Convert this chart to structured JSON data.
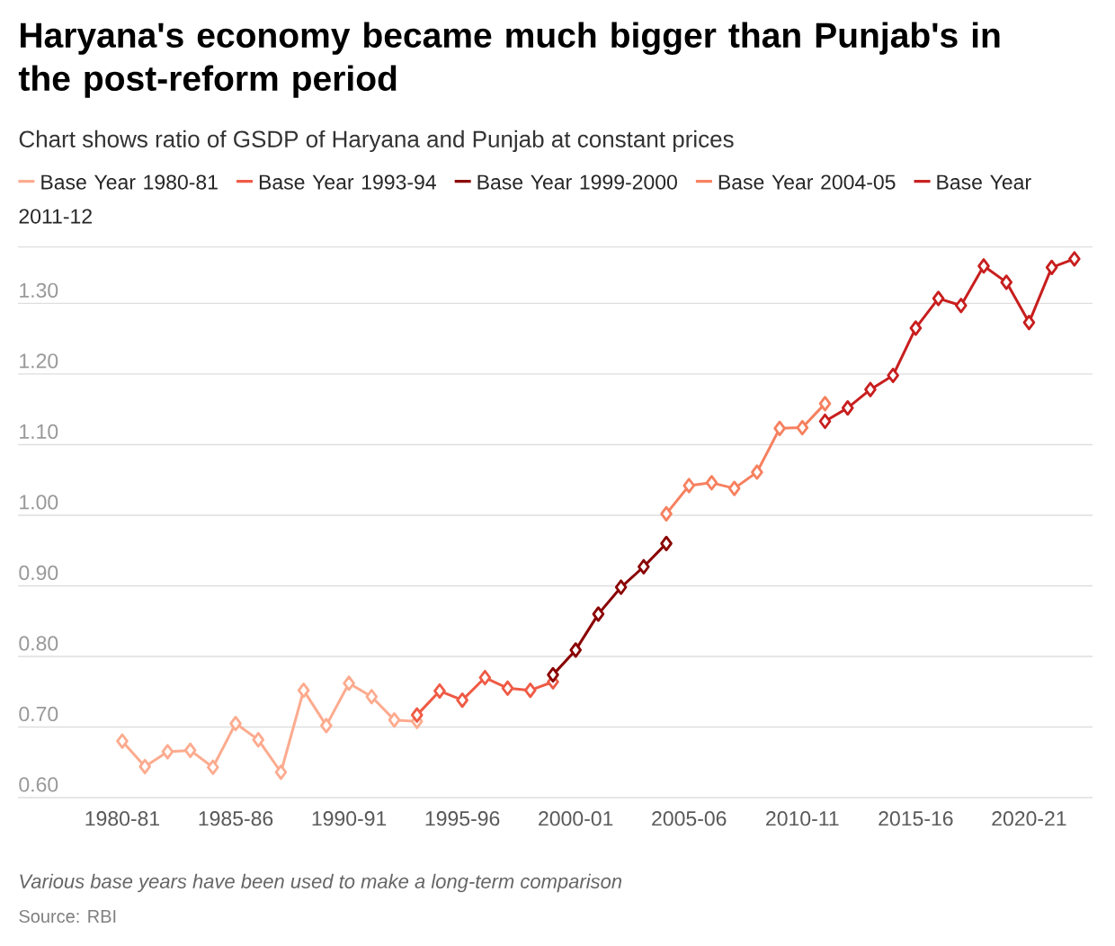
{
  "chart_data": {
    "type": "line",
    "title": "Haryana's economy became much bigger than Punjab's in the post-reform period",
    "subtitle": "Chart shows ratio of GSDP of Haryana and Punjab at constant prices",
    "categories": [
      "1980-81",
      null,
      null,
      null,
      null,
      "1985-86",
      null,
      null,
      null,
      null,
      "1990-91",
      null,
      null,
      null,
      null,
      "1995-96",
      null,
      null,
      null,
      null,
      "2000-01",
      null,
      null,
      null,
      null,
      "2005-06",
      null,
      null,
      null,
      null,
      "2010-11",
      null,
      null,
      null,
      null,
      "2015-16",
      null,
      null,
      null,
      null,
      "2020-21",
      null,
      null
    ],
    "yticks": [
      {
        "value": 0.6,
        "label": "0.60"
      },
      {
        "value": 0.7,
        "label": "0.70"
      },
      {
        "value": 0.8,
        "label": "0.80"
      },
      {
        "value": 0.9,
        "label": "0.90"
      },
      {
        "value": 1.0,
        "label": "1.00"
      },
      {
        "value": 1.1,
        "label": "1.10"
      },
      {
        "value": 1.2,
        "label": "1.20"
      },
      {
        "value": 1.3,
        "label": "1.30"
      },
      {
        "value": 1.38,
        "label": null
      }
    ],
    "ylim": [
      0.6,
      1.38
    ],
    "grid": "y",
    "legend": "top",
    "marker": "diamond",
    "series": [
      {
        "name": "Base Year 1980-81",
        "color": "#fcab8f",
        "values": [
          0.68,
          0.644,
          0.665,
          0.667,
          0.643,
          0.705,
          0.682,
          0.636,
          0.752,
          0.702,
          0.762,
          0.743,
          0.71,
          0.708,
          null,
          null,
          null,
          null,
          null,
          null,
          null,
          null,
          null,
          null,
          null,
          null,
          null,
          null,
          null,
          null,
          null,
          null,
          null,
          null,
          null,
          null,
          null,
          null,
          null,
          null,
          null,
          null,
          null
        ]
      },
      {
        "name": "Base Year 1993-94",
        "color": "#ef5a45",
        "values": [
          null,
          null,
          null,
          null,
          null,
          null,
          null,
          null,
          null,
          null,
          null,
          null,
          null,
          0.717,
          0.751,
          0.738,
          0.77,
          0.755,
          0.752,
          0.764,
          null,
          null,
          null,
          null,
          null,
          null,
          null,
          null,
          null,
          null,
          null,
          null,
          null,
          null,
          null,
          null,
          null,
          null,
          null,
          null,
          null,
          null,
          null
        ]
      },
      {
        "name": "Base Year 1999-2000",
        "color": "#8a0000",
        "values": [
          null,
          null,
          null,
          null,
          null,
          null,
          null,
          null,
          null,
          null,
          null,
          null,
          null,
          null,
          null,
          null,
          null,
          null,
          null,
          0.774,
          0.809,
          0.86,
          0.898,
          0.927,
          0.96,
          null,
          null,
          null,
          null,
          null,
          null,
          null,
          null,
          null,
          null,
          null,
          null,
          null,
          null,
          null,
          null,
          null,
          null
        ]
      },
      {
        "name": "Base Year 2004-05",
        "color": "#f6805f",
        "values": [
          null,
          null,
          null,
          null,
          null,
          null,
          null,
          null,
          null,
          null,
          null,
          null,
          null,
          null,
          null,
          null,
          null,
          null,
          null,
          null,
          null,
          null,
          null,
          null,
          1.002,
          1.042,
          1.046,
          1.038,
          1.061,
          1.123,
          1.124,
          1.158,
          null,
          null,
          null,
          null,
          null,
          null,
          null,
          null,
          null,
          null,
          null
        ]
      },
      {
        "name": "Base Year 2011-12",
        "color": "#c81e1e",
        "values": [
          null,
          null,
          null,
          null,
          null,
          null,
          null,
          null,
          null,
          null,
          null,
          null,
          null,
          null,
          null,
          null,
          null,
          null,
          null,
          null,
          null,
          null,
          null,
          null,
          null,
          null,
          null,
          null,
          null,
          null,
          null,
          1.133,
          1.152,
          1.178,
          1.198,
          1.265,
          1.307,
          1.297,
          1.353,
          1.33,
          1.273,
          1.351,
          1.363
        ]
      }
    ],
    "annotations": [
      "*Various base years have been used to make a long-term comparison*",
      "Source: RBI"
    ]
  }
}
